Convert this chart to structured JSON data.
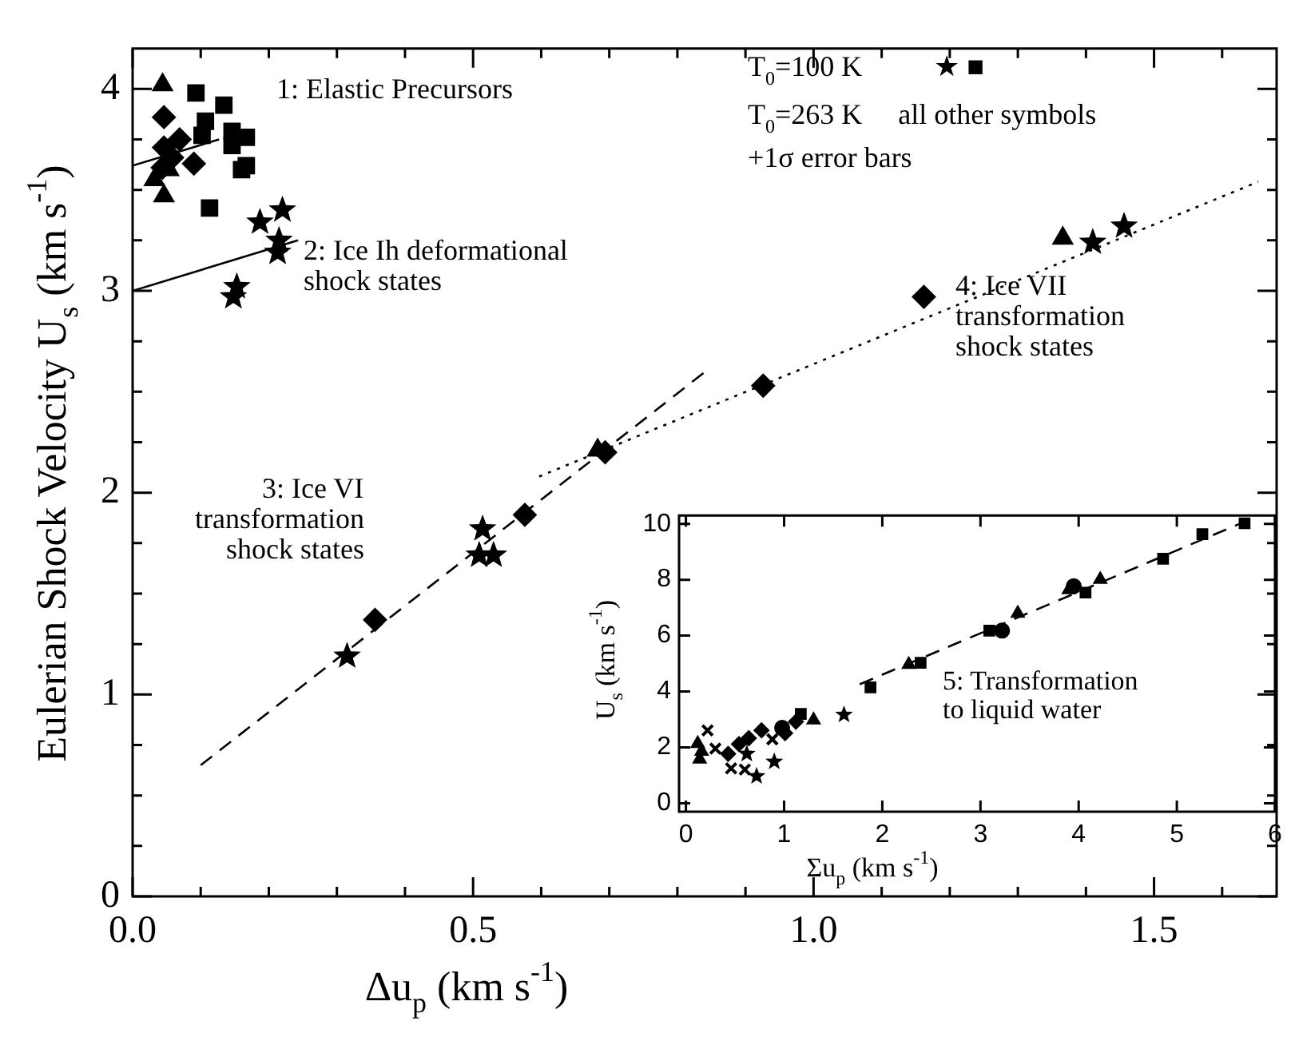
{
  "chart_data": [
    {
      "type": "scatter",
      "xlabel": "Δu$_{p}$ (km s$^{-1}$)",
      "ylabel": "Eulerian Shock Velocity U$_{s}$ (km s$^{-1}$)",
      "xlim": [
        0,
        1.68
      ],
      "ylim": [
        0,
        4.2
      ],
      "xticks": [
        {
          "value": 0,
          "label": "0.0"
        },
        {
          "value": 0.1,
          "label": null
        },
        {
          "value": 0.2,
          "label": null
        },
        {
          "value": 0.3,
          "label": null
        },
        {
          "value": 0.4,
          "label": null
        },
        {
          "value": 0.5,
          "label": "0.5"
        },
        {
          "value": 0.6,
          "label": null
        },
        {
          "value": 0.7,
          "label": null
        },
        {
          "value": 0.8,
          "label": null
        },
        {
          "value": 0.9,
          "label": null
        },
        {
          "value": 1.0,
          "label": "1.0"
        },
        {
          "value": 1.1,
          "label": null
        },
        {
          "value": 1.2,
          "label": null
        },
        {
          "value": 1.3,
          "label": null
        },
        {
          "value": 1.4,
          "label": null
        },
        {
          "value": 1.5,
          "label": "1.5"
        },
        {
          "value": 1.6,
          "label": null
        }
      ],
      "yticks": [
        0,
        {
          "value": 0.25,
          "label": null
        },
        {
          "value": 0.5,
          "label": null
        },
        {
          "value": 0.75,
          "label": null
        },
        1,
        {
          "value": 1.25,
          "label": null
        },
        {
          "value": 1.5,
          "label": null
        },
        {
          "value": 1.75,
          "label": null
        },
        2,
        {
          "value": 2.25,
          "label": null
        },
        {
          "value": 2.5,
          "label": null
        },
        {
          "value": 2.75,
          "label": null
        },
        3,
        {
          "value": 3.25,
          "label": null
        },
        {
          "value": 3.5,
          "label": null
        },
        {
          "value": 3.75,
          "label": null
        },
        4
      ],
      "grid": false,
      "legend": false,
      "series": [
        {
          "type": "scatter",
          "marker": "square",
          "color": "#000000",
          "x": [
            0.093,
            0.134,
            0.107,
            0.102,
            0.146,
            0.146,
            0.167,
            0.167,
            0.16,
            0.113
          ],
          "values": [
            3.98,
            3.92,
            3.84,
            3.77,
            3.79,
            3.72,
            3.76,
            3.62,
            3.6,
            3.41
          ]
        },
        {
          "type": "scatter",
          "marker": "star",
          "color": "#000000",
          "x": [
            0.187,
            0.22,
            0.215,
            0.213,
            0.153,
            0.148,
            0.315,
            0.509,
            0.53,
            0.514,
            1.41,
            1.456
          ],
          "values": [
            3.34,
            3.4,
            3.25,
            3.19,
            3.02,
            2.97,
            1.19,
            1.69,
            1.69,
            1.82,
            3.24,
            3.32
          ]
        },
        {
          "type": "scatter",
          "marker": "diamond",
          "color": "#000000",
          "x": [
            0.046,
            0.069,
            0.09,
            0.046,
            0.058,
            0.044
          ],
          "values": [
            3.86,
            3.75,
            3.63,
            3.71,
            3.66,
            3.61
          ]
        },
        {
          "type": "scatter",
          "marker": "triangle",
          "color": "#000000",
          "x": [
            0.044,
            0.046,
            0.032,
            0.053
          ],
          "values": [
            4.02,
            3.47,
            3.55,
            3.6
          ]
        },
        {
          "type": "scatter",
          "marker": "diamond",
          "color": "#000000",
          "x": [
            0.356,
            0.576,
            0.694,
            0.926,
            1.162
          ],
          "values": [
            1.37,
            1.89,
            2.2,
            2.53,
            2.97
          ]
        },
        {
          "type": "scatter",
          "marker": "triangle",
          "color": "#000000",
          "x": [
            0.683,
            1.366
          ],
          "values": [
            2.21,
            3.26
          ]
        },
        {
          "type": "line",
          "marker": "none",
          "line_style": "solid",
          "color": "#000000",
          "x": [
            0,
            0.127
          ],
          "values": [
            3.62,
            3.75
          ]
        },
        {
          "type": "line",
          "marker": "none",
          "line_style": "solid",
          "color": "#000000",
          "x": [
            0,
            0.243
          ],
          "values": [
            3.0,
            3.25
          ]
        },
        {
          "type": "line",
          "marker": "none",
          "line_style": "dashed",
          "color": "#000000",
          "x": [
            0.1,
            0.845
          ],
          "values": [
            0.65,
            2.61
          ]
        },
        {
          "type": "line",
          "marker": "none",
          "line_style": "dotted",
          "color": "#000000",
          "x": [
            0.597,
            1.653
          ],
          "values": [
            2.08,
            3.54
          ]
        }
      ],
      "annotations": [
        "1: Elastic Precursors",
        "2: Ice Ih deformational\nshock states",
        "3: Ice VI\ntransformation\nshock states",
        "4: Ice VII\ntransformation\nshock states",
        "T$_{0}$=100 K          ★ ■",
        "T$_{0}$=263 K     all other symbols",
        "+1σ error bars"
      ]
    },
    {
      "type": "scatter",
      "xlabel": "Σu$_{p}$ (km s$^{-1}$)",
      "ylabel": "U$_{s}$ (km s$^{-1}$)",
      "xlim": [
        -0.07,
        6
      ],
      "ylim": [
        -0.3,
        10.3
      ],
      "xticks": [
        0,
        1,
        2,
        3,
        4,
        5,
        6
      ],
      "yticks": [
        0,
        2,
        4,
        6,
        8,
        10
      ],
      "grid": false,
      "legend": false,
      "series": [
        {
          "type": "scatter",
          "marker": "square",
          "color": "#000000",
          "x": [
            1.88,
            2.39,
            3.09,
            4.07,
            4.86,
            5.26,
            5.69
          ],
          "values": [
            4.15,
            5.03,
            6.18,
            7.54,
            8.75,
            9.63,
            10.02
          ]
        },
        {
          "type": "scatter",
          "marker": "triangle",
          "color": "#000000",
          "x": [
            1.3,
            2.27,
            3.38,
            3.9,
            4.22
          ],
          "values": [
            2.98,
            4.97,
            6.8,
            7.64,
            8.01
          ]
        },
        {
          "type": "scatter",
          "marker": "circle",
          "color": "#000000",
          "x": [
            0.98,
            3.22,
            3.95
          ],
          "values": [
            2.7,
            6.18,
            7.77
          ]
        },
        {
          "type": "scatter",
          "marker": "star",
          "color": "#000000",
          "x": [
            0.62,
            0.72,
            0.9,
            1.61
          ],
          "values": [
            1.77,
            0.97,
            1.49,
            3.17
          ]
        },
        {
          "type": "scatter",
          "marker": "square",
          "color": "#000000",
          "x": [
            1.17
          ],
          "values": [
            3.2
          ]
        },
        {
          "type": "scatter",
          "marker": "cross",
          "color": "#000000",
          "x": [
            0.22,
            0.3,
            0.46,
            0.6,
            0.88
          ],
          "values": [
            2.61,
            1.96,
            1.25,
            1.21,
            2.29
          ]
        },
        {
          "type": "scatter",
          "marker": "triangle",
          "color": "#000000",
          "x": [
            0.12,
            0.14,
            0.16
          ],
          "values": [
            2.14,
            1.58,
            1.86
          ]
        },
        {
          "type": "scatter",
          "marker": "diamond",
          "color": "#000000",
          "x": [
            0.43,
            0.54,
            0.64,
            0.77,
            1.01,
            1.12
          ],
          "values": [
            1.77,
            2.12,
            2.33,
            2.61,
            2.51,
            2.92
          ]
        },
        {
          "type": "line",
          "marker": "none",
          "line_style": "dashed",
          "color": "#000000",
          "x": [
            1.77,
            5.74
          ],
          "values": [
            4.26,
            10.15
          ]
        }
      ],
      "annotations": [
        "5: Transformation\nto liquid water"
      ]
    }
  ]
}
